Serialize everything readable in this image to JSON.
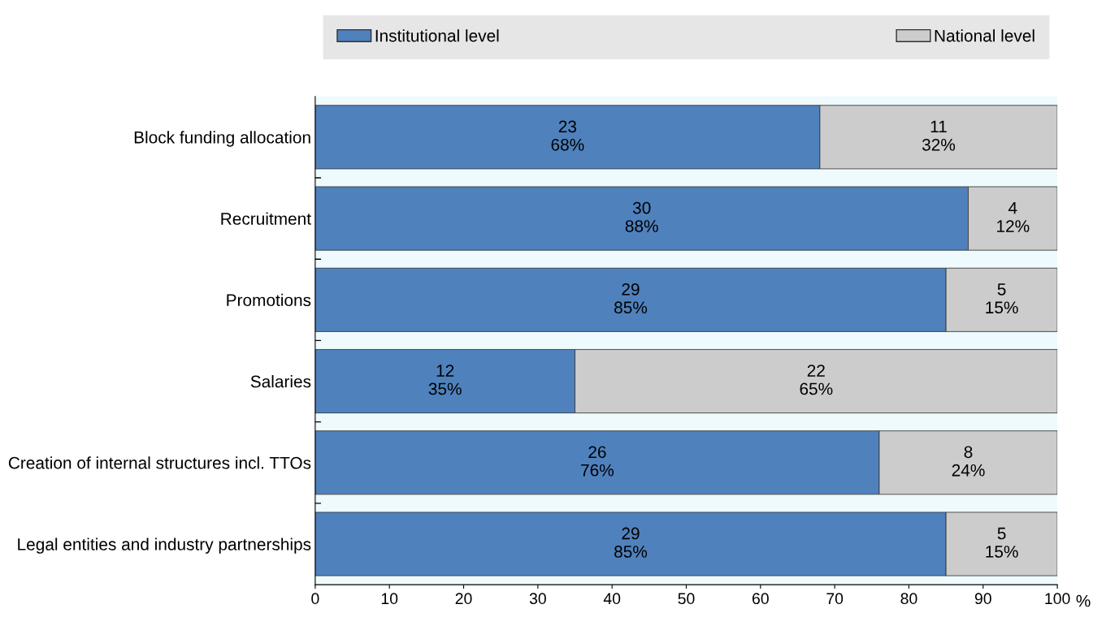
{
  "chart_data": {
    "type": "bar",
    "orientation": "horizontal",
    "stacked": true,
    "xlabel": "%",
    "categories": [
      "Block funding allocation",
      "Recruitment",
      "Promotions",
      "Salaries",
      "Creation of internal structures incl. TTOs",
      "Legal entities and industry partnerships"
    ],
    "series": [
      {
        "name": "Institutional level",
        "color": "#4f81bd",
        "values": [
          68,
          88,
          85,
          35,
          76,
          85
        ],
        "value_labels": [
          "23\n68%",
          "30\n88%",
          "29\n85%",
          "12\n35%",
          "26\n76%",
          "29\n85%"
        ]
      },
      {
        "name": "National level",
        "color": "#cccccc",
        "values": [
          32,
          12,
          15,
          65,
          24,
          15
        ],
        "value_labels": [
          "11\n32%",
          "4\n12%",
          "5\n15%",
          "22\n65%",
          "8\n24%",
          "5\n15%"
        ]
      }
    ],
    "xlim": [
      0,
      100
    ],
    "xticks": [
      0,
      10,
      20,
      30,
      40,
      50,
      60,
      70,
      80,
      90,
      100
    ],
    "legend": "top",
    "grid": false
  }
}
